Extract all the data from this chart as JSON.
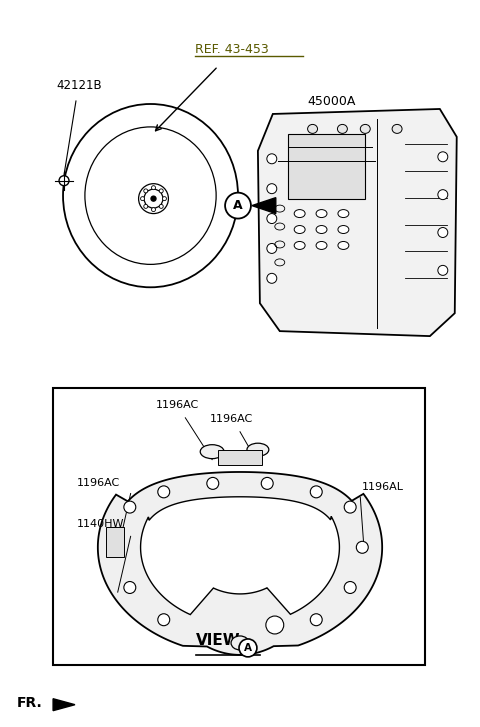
{
  "bg_color": "#ffffff",
  "fig_width": 4.8,
  "fig_height": 7.27,
  "dpi": 100,
  "labels": {
    "part_42121B": "42121B",
    "ref_label": "REF. 43-453",
    "part_45000A": "45000A",
    "circle_A": "A",
    "label_1196AC_top1": "1196AC",
    "label_1196AC_top2": "1196AC",
    "label_1196AC_left": "1196AC",
    "label_1196AL": "1196AL",
    "label_1140HW": "1140HW",
    "view_label": "VIEW",
    "view_circle": "A",
    "fr_label": "FR."
  },
  "colors": {
    "line": "#000000",
    "text": "#000000",
    "ref_text": "#5a5a00",
    "box_fill": "#ffffff",
    "box_edge": "#000000"
  }
}
